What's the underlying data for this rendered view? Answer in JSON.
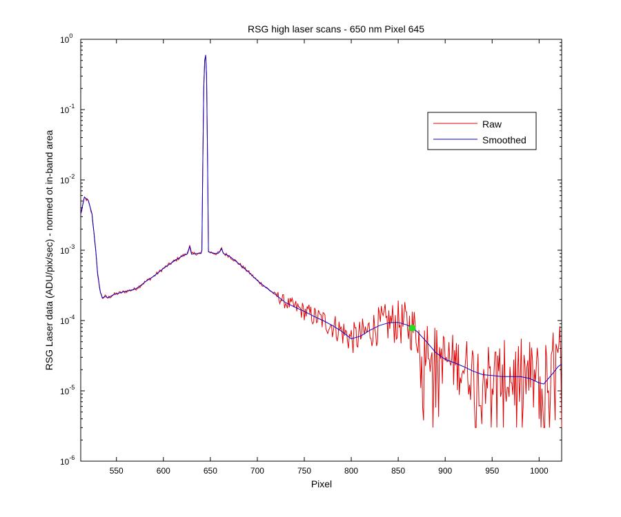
{
  "chart_data": {
    "type": "line",
    "title": "RSG high laser scans  - 650 nm    Pixel 645",
    "xlabel": "Pixel",
    "ylabel": "RSG Laser data (ADU/pix/sec) - normed ot in-band area",
    "xlim": [
      512,
      1024
    ],
    "ylim": [
      1e-06,
      1
    ],
    "yscale": "log",
    "grid": false,
    "legend_position": "top-right",
    "x_ticks": [
      550,
      600,
      650,
      700,
      750,
      800,
      850,
      900,
      950,
      1000
    ],
    "y_ticks": [
      {
        "value": 1e-06,
        "base": "10",
        "exp": "-6"
      },
      {
        "value": 1e-05,
        "base": "10",
        "exp": "-5"
      },
      {
        "value": 0.0001,
        "base": "10",
        "exp": "-4"
      },
      {
        "value": 0.001,
        "base": "10",
        "exp": "-3"
      },
      {
        "value": 0.01,
        "base": "10",
        "exp": "-2"
      },
      {
        "value": 0.1,
        "base": "10",
        "exp": "-1"
      },
      {
        "value": 1,
        "base": "10",
        "exp": "0"
      }
    ],
    "series": [
      {
        "name": "Raw",
        "color": "#e00000",
        "noise_from": 720,
        "points": [
          [
            512,
            0.0032
          ],
          [
            516,
            0.0056
          ],
          [
            520,
            0.005
          ],
          [
            524,
            0.0032
          ],
          [
            528,
            0.001
          ],
          [
            530,
            0.00045
          ],
          [
            533,
            0.00025
          ],
          [
            535,
            0.00021
          ],
          [
            538,
            0.00022
          ],
          [
            541,
            0.00021
          ],
          [
            546,
            0.00023
          ],
          [
            550,
            0.00024
          ],
          [
            555,
            0.00025
          ],
          [
            560,
            0.00026
          ],
          [
            570,
            0.00028
          ],
          [
            575,
            0.00031
          ],
          [
            580,
            0.00035
          ],
          [
            590,
            0.00043
          ],
          [
            600,
            0.00055
          ],
          [
            610,
            0.00068
          ],
          [
            620,
            0.00083
          ],
          [
            625,
            0.00088
          ],
          [
            628,
            0.00115
          ],
          [
            630,
            0.00088
          ],
          [
            635,
            0.0009
          ],
          [
            640,
            0.0009
          ],
          [
            641,
            0.001
          ],
          [
            642,
            0.02
          ],
          [
            643,
            0.2
          ],
          [
            644,
            0.5
          ],
          [
            645,
            0.6
          ],
          [
            646,
            0.3
          ],
          [
            647,
            0.02
          ],
          [
            648,
            0.00095
          ],
          [
            652,
            0.00092
          ],
          [
            655,
            0.0009
          ],
          [
            658,
            0.0009
          ],
          [
            660,
            0.00095
          ],
          [
            662,
            0.00105
          ],
          [
            664,
            0.0009
          ],
          [
            670,
            0.00083
          ],
          [
            680,
            0.00065
          ],
          [
            690,
            0.0005
          ],
          [
            700,
            0.00037
          ],
          [
            710,
            0.00029
          ],
          [
            720,
            0.00023
          ],
          [
            730,
            0.00018
          ],
          [
            740,
            0.000155
          ],
          [
            750,
            0.000135
          ],
          [
            760,
            0.000115
          ],
          [
            770,
            0.0001
          ],
          [
            780,
            8.5e-05
          ],
          [
            790,
            7e-05
          ],
          [
            800,
            5.5e-05
          ],
          [
            810,
            6e-05
          ],
          [
            820,
            7.3e-05
          ],
          [
            830,
            8.5e-05
          ],
          [
            840,
            9.3e-05
          ],
          [
            850,
            9.4e-05
          ],
          [
            860,
            8.6e-05
          ],
          [
            870,
            7e-05
          ],
          [
            880,
            5e-05
          ],
          [
            890,
            3.5e-05
          ],
          [
            900,
            2.8e-05
          ],
          [
            910,
            2.5e-05
          ],
          [
            920,
            2.2e-05
          ],
          [
            930,
            1.9e-05
          ],
          [
            940,
            1.7e-05
          ],
          [
            950,
            1.65e-05
          ],
          [
            960,
            1.6e-05
          ],
          [
            970,
            1.6e-05
          ],
          [
            980,
            1.6e-05
          ],
          [
            990,
            1.5e-05
          ],
          [
            1000,
            1.3e-05
          ],
          [
            1005,
            1.25e-05
          ],
          [
            1010,
            1.5e-05
          ],
          [
            1015,
            1.8e-05
          ],
          [
            1020,
            2.2e-05
          ],
          [
            1024,
            2.4e-05
          ]
        ]
      },
      {
        "name": "Smoothed",
        "color": "#0000cc",
        "points": [
          [
            512,
            0.0033
          ],
          [
            516,
            0.0057
          ],
          [
            520,
            0.0051
          ],
          [
            524,
            0.0033
          ],
          [
            528,
            0.001
          ],
          [
            530,
            0.00045
          ],
          [
            533,
            0.00025
          ],
          [
            535,
            0.00021
          ],
          [
            538,
            0.00022
          ],
          [
            541,
            0.00021
          ],
          [
            546,
            0.00023
          ],
          [
            550,
            0.00024
          ],
          [
            555,
            0.00025
          ],
          [
            560,
            0.00026
          ],
          [
            570,
            0.00028
          ],
          [
            575,
            0.00031
          ],
          [
            580,
            0.00035
          ],
          [
            590,
            0.00043
          ],
          [
            600,
            0.00055
          ],
          [
            610,
            0.00068
          ],
          [
            620,
            0.00083
          ],
          [
            625,
            0.00088
          ],
          [
            628,
            0.00112
          ],
          [
            630,
            0.00088
          ],
          [
            635,
            0.0009
          ],
          [
            640,
            0.0009
          ],
          [
            641,
            0.001
          ],
          [
            642,
            0.02
          ],
          [
            643,
            0.2
          ],
          [
            644,
            0.5
          ],
          [
            645,
            0.6
          ],
          [
            646,
            0.3
          ],
          [
            647,
            0.02
          ],
          [
            648,
            0.00095
          ],
          [
            652,
            0.00092
          ],
          [
            655,
            0.0009
          ],
          [
            658,
            0.0009
          ],
          [
            660,
            0.00095
          ],
          [
            662,
            0.00105
          ],
          [
            664,
            0.0009
          ],
          [
            670,
            0.00083
          ],
          [
            680,
            0.00065
          ],
          [
            690,
            0.0005
          ],
          [
            700,
            0.00037
          ],
          [
            710,
            0.00029
          ],
          [
            720,
            0.00023
          ],
          [
            730,
            0.00018
          ],
          [
            740,
            0.000155
          ],
          [
            750,
            0.000135
          ],
          [
            760,
            0.000115
          ],
          [
            770,
            0.0001
          ],
          [
            780,
            8.5e-05
          ],
          [
            790,
            7e-05
          ],
          [
            800,
            5.5e-05
          ],
          [
            810,
            6e-05
          ],
          [
            820,
            7.3e-05
          ],
          [
            830,
            8.5e-05
          ],
          [
            840,
            9.3e-05
          ],
          [
            850,
            9.4e-05
          ],
          [
            860,
            8.6e-05
          ],
          [
            870,
            7e-05
          ],
          [
            880,
            5e-05
          ],
          [
            890,
            3.5e-05
          ],
          [
            900,
            2.8e-05
          ],
          [
            910,
            2.5e-05
          ],
          [
            920,
            2.2e-05
          ],
          [
            930,
            1.9e-05
          ],
          [
            940,
            1.7e-05
          ],
          [
            950,
            1.65e-05
          ],
          [
            960,
            1.6e-05
          ],
          [
            970,
            1.6e-05
          ],
          [
            980,
            1.6e-05
          ],
          [
            990,
            1.5e-05
          ],
          [
            1000,
            1.3e-05
          ],
          [
            1005,
            1.25e-05
          ],
          [
            1010,
            1.5e-05
          ],
          [
            1015,
            1.8e-05
          ],
          [
            1020,
            2.2e-05
          ],
          [
            1024,
            2.4e-05
          ]
        ]
      }
    ],
    "marker": {
      "x": 865,
      "y": 7.8e-05,
      "color": "#22dd22"
    }
  }
}
